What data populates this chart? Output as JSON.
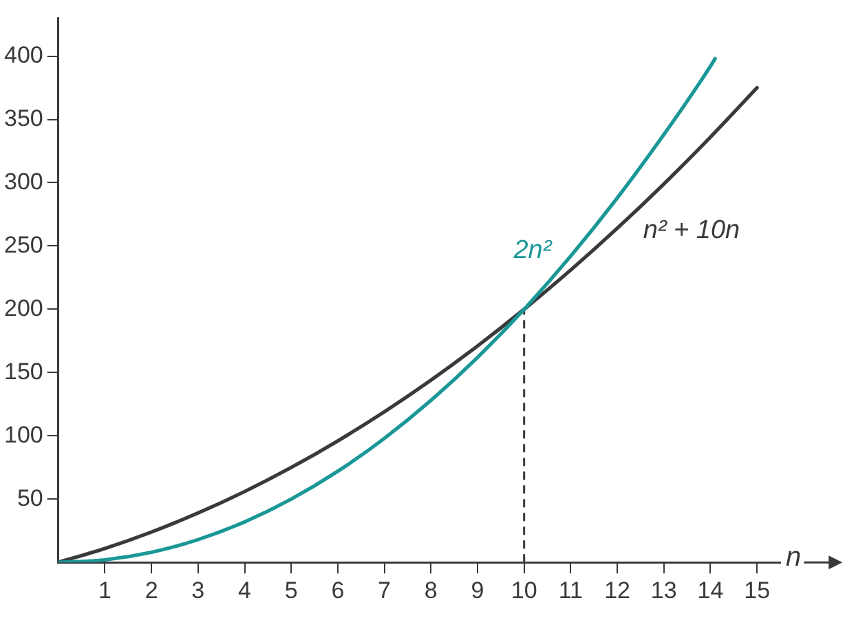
{
  "chart_data": {
    "type": "line",
    "xlabel": "n",
    "xlim": [
      0,
      15.5
    ],
    "xticks": [
      1,
      2,
      3,
      4,
      5,
      6,
      7,
      8,
      9,
      10,
      11,
      12,
      13,
      14,
      15
    ],
    "ylim": [
      0,
      430
    ],
    "yticks": [
      50,
      100,
      150,
      200,
      250,
      300,
      350,
      400
    ],
    "grid": false,
    "legend": false,
    "marker": "none",
    "line_style": "solid",
    "series": [
      {
        "name": "2n²",
        "color": "#1a9797",
        "x": [
          0,
          1,
          2,
          3,
          4,
          5,
          6,
          7,
          8,
          9,
          10,
          11,
          12,
          13,
          14,
          14.1
        ],
        "values": [
          0,
          2,
          8,
          18,
          32,
          50,
          72,
          98,
          128,
          162,
          200,
          242,
          288,
          338,
          392,
          398
        ]
      },
      {
        "name": "n² + 10n",
        "color": "#3a3a3c",
        "x": [
          0,
          1,
          2,
          3,
          4,
          5,
          6,
          7,
          8,
          9,
          10,
          11,
          12,
          13,
          14,
          15
        ],
        "values": [
          0,
          11,
          24,
          39,
          56,
          75,
          96,
          119,
          144,
          171,
          200,
          231,
          264,
          299,
          336,
          375
        ]
      }
    ],
    "ref_lines": [
      {
        "axis": "x",
        "value": 10,
        "line_style": "dashed",
        "color": "#3a3a3c"
      }
    ]
  }
}
